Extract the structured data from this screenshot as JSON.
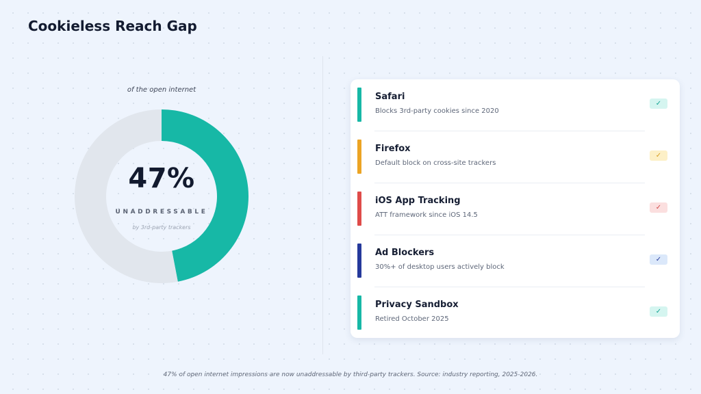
{
  "title": "Cookieless Reach Gap",
  "chart_data": {
    "type": "pie",
    "subtype": "donut",
    "caption": "of the open internet",
    "slices": [
      {
        "label": "unaddressable",
        "value": 47,
        "color": "#17b8a6"
      },
      {
        "label": "remaining",
        "value": 53,
        "color": "#e1e6ed"
      }
    ],
    "center_value": "47%",
    "center_label": "UNADDRESSABLE",
    "center_sub": "by 3rd-party trackers"
  },
  "blockers": [
    {
      "name": "Safari",
      "desc": "Blocks 3rd-party cookies since 2020",
      "color": "#17b8a6",
      "badge_bg": "#d5f5f0",
      "badge_fg": "#12a292",
      "check": "✓",
      "icon": "check-icon"
    },
    {
      "name": "Firefox",
      "desc": "Default block on cross-site trackers",
      "color": "#eca424",
      "badge_bg": "#fdf0c7",
      "badge_fg": "#d79c1f",
      "check": "✓",
      "icon": "check-icon"
    },
    {
      "name": "iOS App Tracking",
      "desc": "ATT framework since iOS 14.5",
      "color": "#df4b49",
      "badge_bg": "#fbdfdf",
      "badge_fg": "#d24848",
      "check": "✓",
      "icon": "check-icon"
    },
    {
      "name": "Ad Blockers",
      "desc": "30%+ of desktop users actively block",
      "color": "#25399b",
      "badge_bg": "#dbe8fa",
      "badge_fg": "#26399a",
      "check": "✓",
      "icon": "check-icon"
    },
    {
      "name": "Privacy Sandbox",
      "desc": "Retired October 2025",
      "color": "#17b8a6",
      "badge_bg": "#d5f5f0",
      "badge_fg": "#12a292",
      "check": "✓",
      "icon": "check-icon"
    }
  ],
  "footnote": "47% of open internet impressions are now unaddressable by third-party trackers. Source: industry reporting, 2025-2026."
}
